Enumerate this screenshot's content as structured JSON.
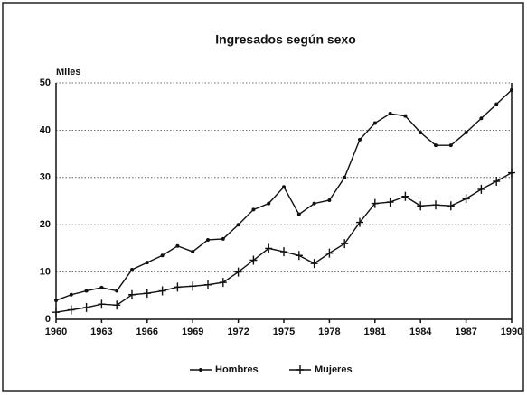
{
  "chart_data": {
    "type": "line",
    "title": "Ingresados según sexo",
    "y_label": "Miles",
    "x": [
      1960,
      1961,
      1962,
      1963,
      1964,
      1965,
      1966,
      1967,
      1968,
      1969,
      1970,
      1971,
      1972,
      1973,
      1974,
      1975,
      1976,
      1977,
      1978,
      1979,
      1980,
      1981,
      1982,
      1983,
      1984,
      1985,
      1986,
      1987,
      1988,
      1989,
      1990
    ],
    "series": [
      {
        "name": "Hombres",
        "color": "#111111",
        "marker": "dot",
        "values": [
          4,
          5.2,
          6,
          6.7,
          6,
          10.5,
          12,
          13.5,
          15.5,
          14.3,
          16.8,
          17,
          20,
          23.2,
          24.5,
          28,
          22.2,
          24.5,
          25.2,
          30,
          38,
          41.5,
          43.5,
          43,
          39.5,
          36.8,
          36.8,
          39.5,
          42.5,
          45.5,
          48.5
        ]
      },
      {
        "name": "Mujeres",
        "color": "#111111",
        "marker": "plus",
        "values": [
          1.5,
          2,
          2.5,
          3.2,
          3,
          5.2,
          5.5,
          6,
          6.8,
          7,
          7.3,
          7.8,
          10,
          12.5,
          15,
          14.3,
          13.5,
          11.8,
          14,
          16,
          20.5,
          24.5,
          24.8,
          26,
          24,
          24.2,
          24,
          25.5,
          27.5,
          29.2,
          31
        ]
      }
    ],
    "xlim": [
      1960,
      1990
    ],
    "xticks": [
      1960,
      1963,
      1966,
      1969,
      1972,
      1975,
      1978,
      1981,
      1984,
      1987,
      1990
    ],
    "ylim": [
      0,
      50
    ],
    "yticks": [
      0,
      10,
      20,
      30,
      40,
      50
    ],
    "grid": true,
    "legend": "bottom"
  }
}
